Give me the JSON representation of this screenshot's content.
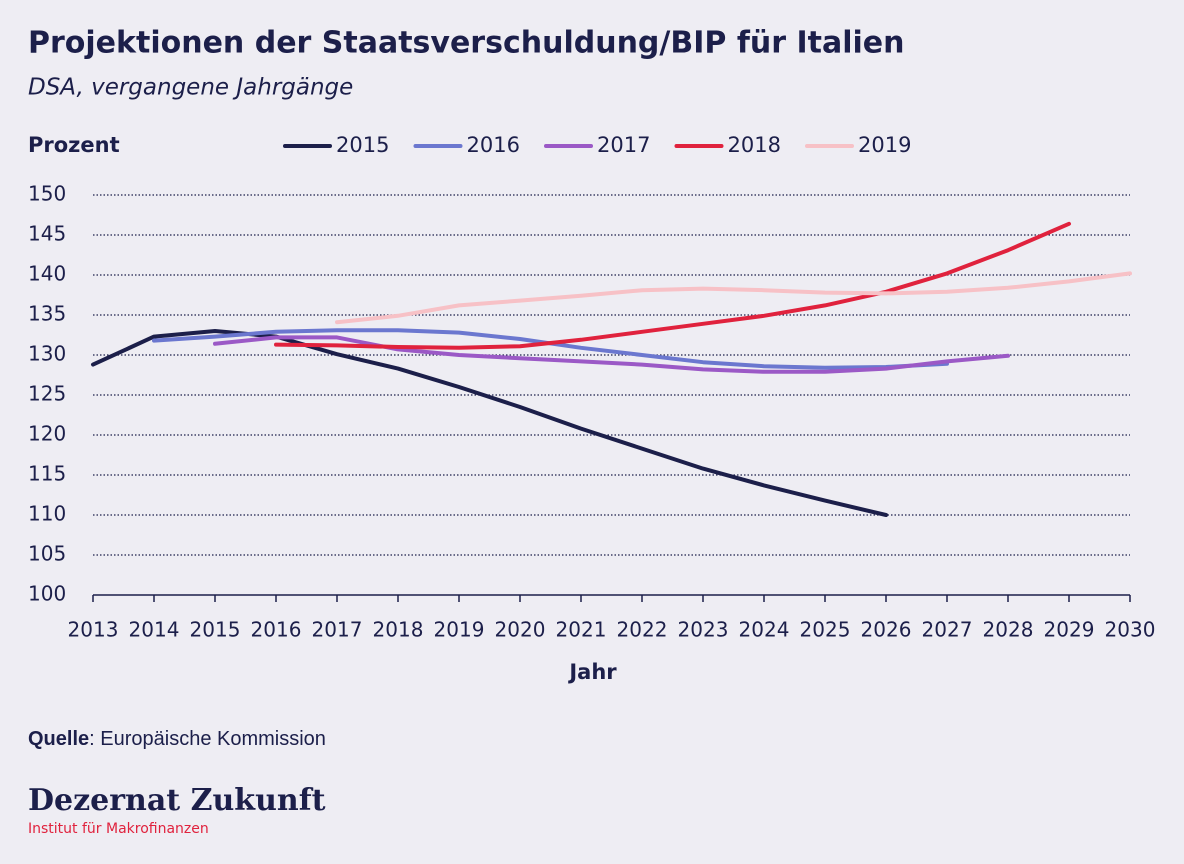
{
  "chart_data": {
    "type": "line",
    "title": "Projektionen der Staatsverschuldung/BIP für Italien",
    "subtitle": "DSA, vergangene Jahrgänge",
    "y_label": "Prozent",
    "x_label": "Jahr",
    "x": [
      2013,
      2014,
      2015,
      2016,
      2017,
      2018,
      2019,
      2020,
      2021,
      2022,
      2023,
      2024,
      2025,
      2026,
      2027,
      2028,
      2029,
      2030
    ],
    "series": [
      {
        "name": "2015",
        "color": "#1c1f4a",
        "values": [
          128.8,
          132.3,
          133.0,
          132.3,
          130.1,
          128.3,
          126.0,
          123.5,
          120.8,
          118.3,
          115.8,
          113.7,
          111.8,
          110.0,
          null,
          null,
          null,
          null
        ]
      },
      {
        "name": "2016",
        "color": "#6b77cf",
        "values": [
          null,
          131.8,
          132.3,
          132.9,
          133.1,
          133.1,
          132.8,
          132.0,
          130.9,
          130.0,
          129.1,
          128.6,
          128.4,
          128.5,
          128.9,
          null,
          null,
          null
        ]
      },
      {
        "name": "2017",
        "color": "#9b59c6",
        "values": [
          null,
          null,
          131.4,
          132.2,
          132.2,
          130.7,
          130.0,
          129.6,
          129.2,
          128.8,
          128.2,
          127.9,
          127.9,
          128.3,
          129.2,
          129.9,
          null,
          null
        ]
      },
      {
        "name": "2018",
        "color": "#e0223d",
        "values": [
          null,
          null,
          null,
          131.3,
          131.2,
          131.0,
          130.9,
          131.1,
          131.9,
          132.9,
          133.9,
          134.9,
          136.2,
          137.9,
          140.2,
          143.1,
          146.4,
          null
        ]
      },
      {
        "name": "2019",
        "color": "#f7c1c6",
        "values": [
          null,
          null,
          null,
          null,
          134.1,
          134.9,
          136.2,
          136.8,
          137.4,
          138.1,
          138.3,
          138.1,
          137.8,
          137.7,
          137.9,
          138.4,
          139.2,
          140.2
        ]
      }
    ],
    "xlim": [
      2013,
      2030
    ],
    "xticks": [
      2013,
      2014,
      2015,
      2016,
      2017,
      2018,
      2019,
      2020,
      2021,
      2022,
      2023,
      2024,
      2025,
      2026,
      2027,
      2028,
      2029,
      2030
    ],
    "ylim": [
      100,
      150
    ],
    "yticks": [
      100,
      105,
      110,
      115,
      120,
      125,
      130,
      135,
      140,
      145,
      150
    ],
    "grid": true
  },
  "footer": {
    "source_label": "Quelle",
    "source_text": ": Europäische Kommission",
    "brand": "Dezernat Zukunft",
    "brand_subtitle": "Institut für Makrofinanzen"
  }
}
